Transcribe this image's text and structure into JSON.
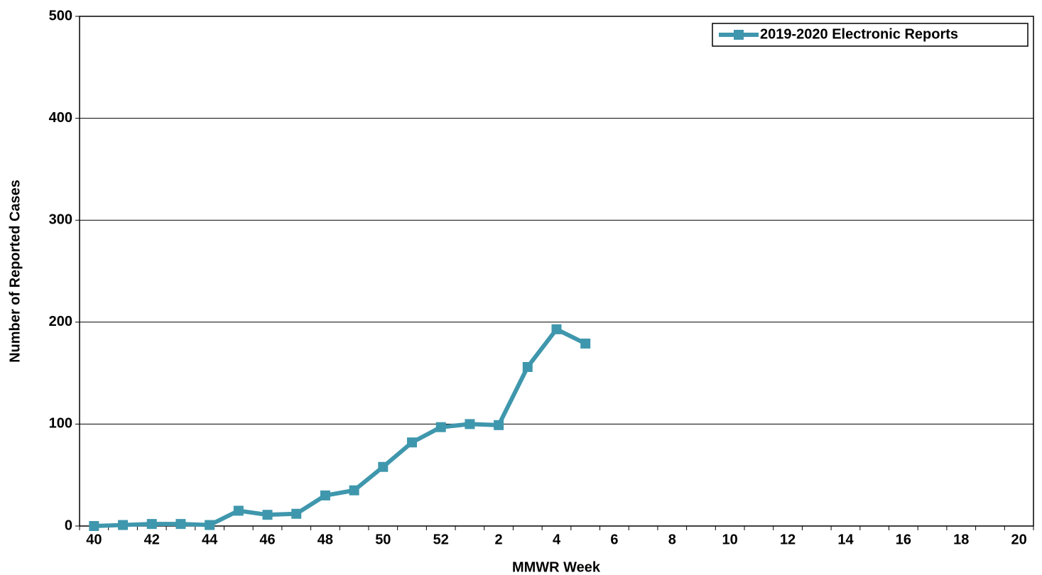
{
  "chart_data": {
    "type": "line",
    "x_label": "MMWR Week",
    "y_label": "Number of Reported Cases",
    "categories": [
      "40",
      null,
      "42",
      null,
      "44",
      null,
      "46",
      null,
      "48",
      null,
      "50",
      null,
      "52",
      null,
      "2",
      null,
      "4",
      null,
      "6",
      null,
      "8",
      null,
      "10",
      null,
      "12",
      null,
      "14",
      null,
      "16",
      null,
      "18",
      null,
      "20"
    ],
    "series": [
      {
        "name": "2019-2020 Electronic Reports",
        "color": "#3f97ad",
        "values": [
          0,
          1,
          2,
          2,
          1,
          15,
          11,
          12,
          30,
          35,
          58,
          82,
          97,
          100,
          99,
          156,
          193,
          179,
          null,
          null,
          null,
          null,
          null,
          null,
          null,
          null,
          null,
          null,
          null,
          null,
          null,
          null,
          null
        ]
      }
    ],
    "ylim": [
      0,
      500
    ],
    "yticks": [
      0,
      100,
      200,
      300,
      400,
      500
    ],
    "grid": true,
    "legend": "upper right"
  }
}
